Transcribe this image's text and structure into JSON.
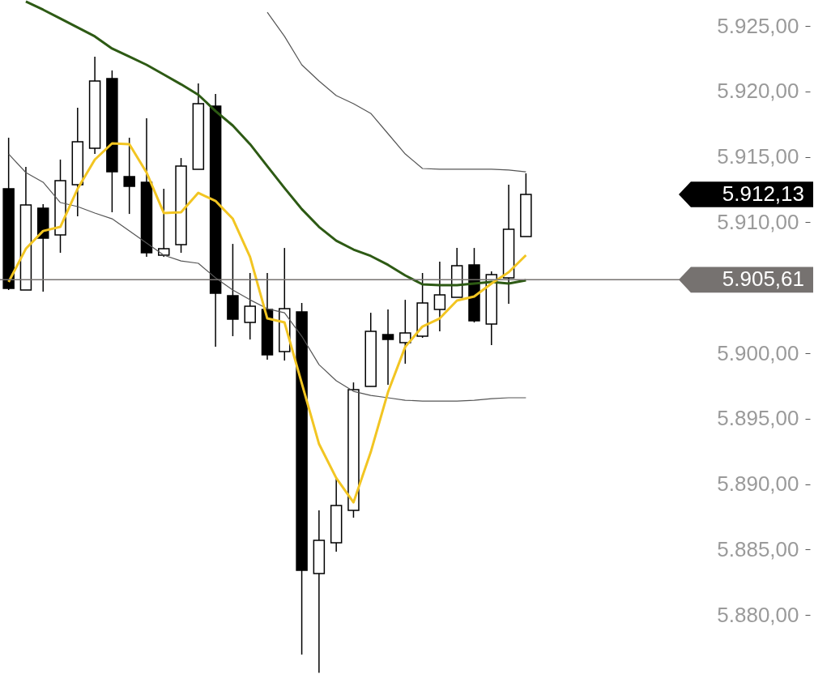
{
  "chart_data": {
    "type": "candlestick",
    "categories": [
      null,
      null,
      null,
      null,
      null,
      null,
      null,
      null,
      null,
      null,
      null,
      null,
      null,
      null,
      null,
      null,
      null,
      null,
      null,
      null,
      null,
      null,
      null,
      null,
      null,
      null,
      null,
      null,
      null,
      null,
      null
    ],
    "ohlc": [
      [
        5912.56,
        5916.46,
        5904.83,
        5904.95
      ],
      [
        5904.83,
        5914.23,
        5904.83,
        5911.32
      ],
      [
        5911.08,
        5911.39,
        5904.7,
        5908.79
      ],
      [
        5909.03,
        5914.79,
        5907.67,
        5913.18
      ],
      [
        5912.87,
        5918.75,
        5910.46,
        5916.15
      ],
      [
        5915.66,
        5922.65,
        5915.22,
        5920.79
      ],
      [
        5920.98,
        5921.6,
        5910.77,
        5913.86
      ],
      [
        5913.49,
        5916.46,
        5910.64,
        5912.75
      ],
      [
        5913.06,
        5917.95,
        5907.36,
        5907.67
      ],
      [
        5907.49,
        5912.56,
        5907.36,
        5907.98
      ],
      [
        5908.29,
        5914.91,
        5907.67,
        5914.29
      ],
      [
        5914.05,
        5920.61,
        5914.05,
        5919.06
      ],
      [
        5918.87,
        5919.8,
        5900.49,
        5904.58
      ],
      [
        5904.39,
        5908.35,
        5901.3,
        5902.6
      ],
      [
        5902.35,
        5906.13,
        5901.05,
        5903.59
      ],
      [
        5903.34,
        5906.13,
        5899.5,
        5899.88
      ],
      [
        5900.12,
        5908.04,
        5899.44,
        5903.4
      ],
      [
        5903.16,
        5903.84,
        5876.98,
        5883.42
      ],
      [
        5883.17,
        5888,
        5875.6,
        5885.71
      ],
      [
        5885.52,
        5890.53,
        5884.84,
        5888.37
      ],
      [
        5888,
        5897.77,
        5887.44,
        5897.22
      ],
      [
        5897.46,
        5903.09,
        5897.46,
        5901.67
      ],
      [
        5901.42,
        5903.34,
        5897.59,
        5901.05
      ],
      [
        5900.8,
        5904.08,
        5899.2,
        5901.55
      ],
      [
        5901.3,
        5906.13,
        5901.18,
        5903.84
      ],
      [
        5903.34,
        5906.99,
        5901.67,
        5904.46
      ],
      [
        5904.27,
        5908.04,
        5904.27,
        5906.68
      ],
      [
        5906.75,
        5908.04,
        5902.35,
        5902.47
      ],
      [
        5902.23,
        5906.25,
        5900.62,
        5906
      ],
      [
        5905.76,
        5912.87,
        5903.77,
        5909.47
      ],
      [
        5908.91,
        5913.74,
        5908.91,
        5912.13
      ]
    ],
    "series": [
      {
        "type": "line",
        "color": "#555555",
        "values": [
          5915.22,
          5913.8,
          5913.06,
          5911.51,
          5911.2,
          5910.71,
          5910.27,
          5909.34,
          5908.42,
          5907.49,
          5907.05,
          5906.87,
          5905.76,
          5904.83,
          5904.08,
          5903.4,
          5903.09,
          5901.3,
          5899.13,
          5897.9,
          5897.09,
          5896.78,
          5896.6,
          5896.41,
          5896.35,
          5896.35,
          5896.35,
          5896.41,
          5896.53,
          5896.6,
          5896.6
        ]
      },
      {
        "type": "line",
        "color": "#555555",
        "values": [
          null,
          null,
          null,
          null,
          null,
          null,
          null,
          null,
          null,
          null,
          null,
          null,
          null,
          null,
          null,
          5926.05,
          5924.2,
          5922.03,
          5920.79,
          5919.68,
          5919.06,
          5918.32,
          5916.77,
          5915.22,
          5914.11,
          5914.05,
          5914.05,
          5914.05,
          5914.05,
          5913.99,
          5913.86
        ]
      },
      {
        "type": "line",
        "color": "#2d5a14",
        "values": [
          null,
          5926.86,
          5926.24,
          5925.56,
          5924.88,
          5924.2,
          5923.27,
          5922.65,
          5922.03,
          5921.29,
          5920.54,
          5919.74,
          5918.5,
          5917.39,
          5915.97,
          5914.29,
          5912.62,
          5911.01,
          5909.65,
          5908.6,
          5907.92,
          5907.43,
          5906.75,
          5905.94,
          5905.26,
          5905.2,
          5905.2,
          5905.32,
          5905.45,
          5905.32,
          5905.57
        ]
      },
      {
        "type": "line",
        "color": "#f2c522",
        "values": [
          5905.45,
          5907.98,
          5909.34,
          5909.65,
          5912.56,
          5914.79,
          5916.03,
          5915.97,
          5913.8,
          5910.71,
          5910.77,
          5912.25,
          5911.63,
          5910.27,
          5907.36,
          5902.66,
          5902.35,
          5897.71,
          5893.07,
          5890.47,
          5888.61,
          5892.45,
          5897.03,
          5900.49,
          5902.04,
          5902.66,
          5904.02,
          5904.33,
          5905.32,
          5906.19,
          5907.49
        ]
      }
    ],
    "ylim": [
      5875.5,
      5926.98
    ],
    "yticks": [
      {
        "value": 5880,
        "label": "5.880,00"
      },
      {
        "value": 5885,
        "label": "5.885,00"
      },
      {
        "value": 5890,
        "label": "5.890,00"
      },
      {
        "value": 5895,
        "label": "5.895,00"
      },
      {
        "value": 5900,
        "label": "5.900,00"
      },
      {
        "value": 5910,
        "label": "5.910,00"
      },
      {
        "value": 5915,
        "label": "5.915,00"
      },
      {
        "value": 5920,
        "label": "5.920,00"
      },
      {
        "value": 5925,
        "label": "5.925,00"
      }
    ],
    "ref_lines": [
      {
        "axis": "y",
        "value": 5905.61,
        "label": "5.905,61",
        "color": "#767270"
      }
    ],
    "annotations": [
      "5.912,13"
    ],
    "tick_labels": "y"
  }
}
